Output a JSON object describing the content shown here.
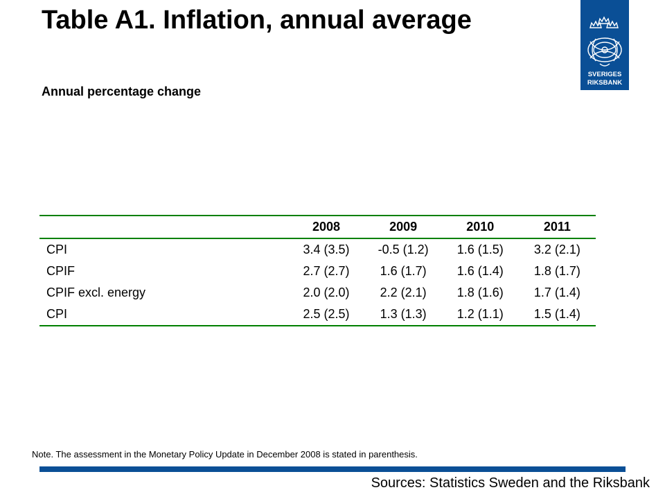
{
  "title": "Table A1. Inflation, annual average",
  "subtitle": "Annual percentage change",
  "logo": {
    "text_line1": "SVERIGES",
    "text_line2": "RIKSBANK",
    "color": "#0a4f96"
  },
  "table": {
    "columns": [
      "",
      "2008",
      "2009",
      "2010",
      "2011"
    ],
    "rows": [
      {
        "label": "CPI",
        "values": [
          "3.4 (3.5)",
          "-0.5 (1.2)",
          "1.6 (1.5)",
          "3.2 (2.1)"
        ]
      },
      {
        "label": "CPIF",
        "values": [
          "2.7 (2.7)",
          "1.6 (1.7)",
          "1.6 (1.4)",
          "1.8 (1.7)"
        ]
      },
      {
        "label": "CPIF excl. energy",
        "values": [
          "2.0 (2.0)",
          "2.2 (2.1)",
          "1.8 (1.6)",
          "1.7 (1.4)"
        ]
      },
      {
        "label": "CPI",
        "values": [
          "2.5 (2.5)",
          "1.3 (1.3)",
          "1.2 (1.1)",
          "1.5 (1.4)"
        ]
      }
    ],
    "rule_color": "#008000"
  },
  "note": "Note. The assessment in the Monetary Policy Update in December 2008 is stated in parenthesis.",
  "sources": "Sources: Statistics Sweden and the Riksbank"
}
